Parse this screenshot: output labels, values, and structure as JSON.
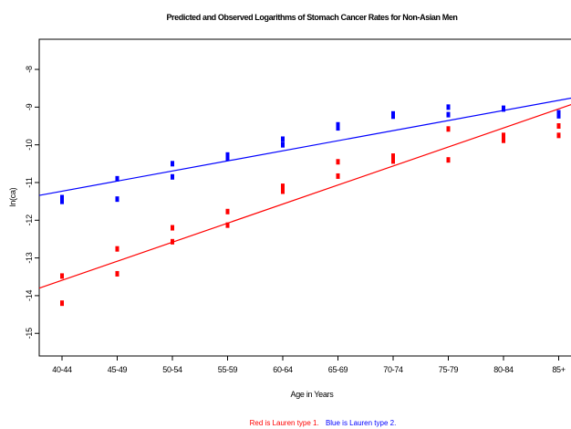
{
  "chart_data": {
    "type": "scatter",
    "title": "Predicted and Observed Logarithms of Stomach Cancer Rates for Non-Asian Men",
    "xlabel": "Age in Years",
    "ylabel": "ln(ca)",
    "categories": [
      "40-44",
      "45-49",
      "50-54",
      "55-59",
      "60-64",
      "65-69",
      "70-74",
      "75-79",
      "80-84",
      "85+"
    ],
    "ylim": [
      -15.6,
      -7.2
    ],
    "yticks": [
      -15,
      -14,
      -13,
      -12,
      -11,
      -10,
      -9,
      -8
    ],
    "grid": false,
    "legend": {
      "position": "bottom-right",
      "items": [
        {
          "text": "Red is Lauren type 1.",
          "color": "#ff0000"
        },
        {
          "text": "Blue is Lauren type 2.",
          "color": "#0000ff"
        }
      ]
    },
    "series": [
      {
        "color": "#ff0000",
        "points": [
          [
            0,
            -13.48
          ],
          [
            0,
            -14.2
          ],
          [
            1,
            -12.76
          ],
          [
            1,
            -13.42
          ],
          [
            2,
            -12.2
          ],
          [
            2,
            -12.57
          ],
          [
            3,
            -11.77
          ],
          [
            3,
            -12.13
          ],
          [
            4,
            -11.1
          ],
          [
            4,
            -11.23
          ],
          [
            5,
            -10.45
          ],
          [
            5,
            -10.83
          ],
          [
            6,
            -10.3
          ],
          [
            6,
            -10.43
          ],
          [
            7,
            -9.58
          ],
          [
            7,
            -10.4
          ],
          [
            8,
            -9.75
          ],
          [
            8,
            -9.88
          ],
          [
            9,
            -9.5
          ],
          [
            9,
            -9.75
          ]
        ],
        "fit": [
          [
            -0.45,
            -13.82
          ],
          [
            9.45,
            -8.82
          ]
        ]
      },
      {
        "color": "#0000ff",
        "points": [
          [
            0,
            -11.4
          ],
          [
            0,
            -11.5
          ],
          [
            1,
            -10.9
          ],
          [
            1,
            -11.44
          ],
          [
            2,
            -10.5
          ],
          [
            2,
            -10.85
          ],
          [
            3,
            -10.27
          ],
          [
            3,
            -10.35
          ],
          [
            4,
            -9.85
          ],
          [
            4,
            -10.0
          ],
          [
            5,
            -9.47
          ],
          [
            5,
            -9.55
          ],
          [
            6,
            -9.18
          ],
          [
            6,
            -9.24
          ],
          [
            7,
            -9.0
          ],
          [
            7,
            -9.2
          ],
          [
            8,
            -9.03
          ],
          [
            8,
            -9.05
          ],
          [
            9,
            -9.15
          ],
          [
            9,
            -9.23
          ]
        ],
        "fit": [
          [
            -0.45,
            -11.35
          ],
          [
            9.45,
            -8.7
          ]
        ]
      }
    ]
  }
}
